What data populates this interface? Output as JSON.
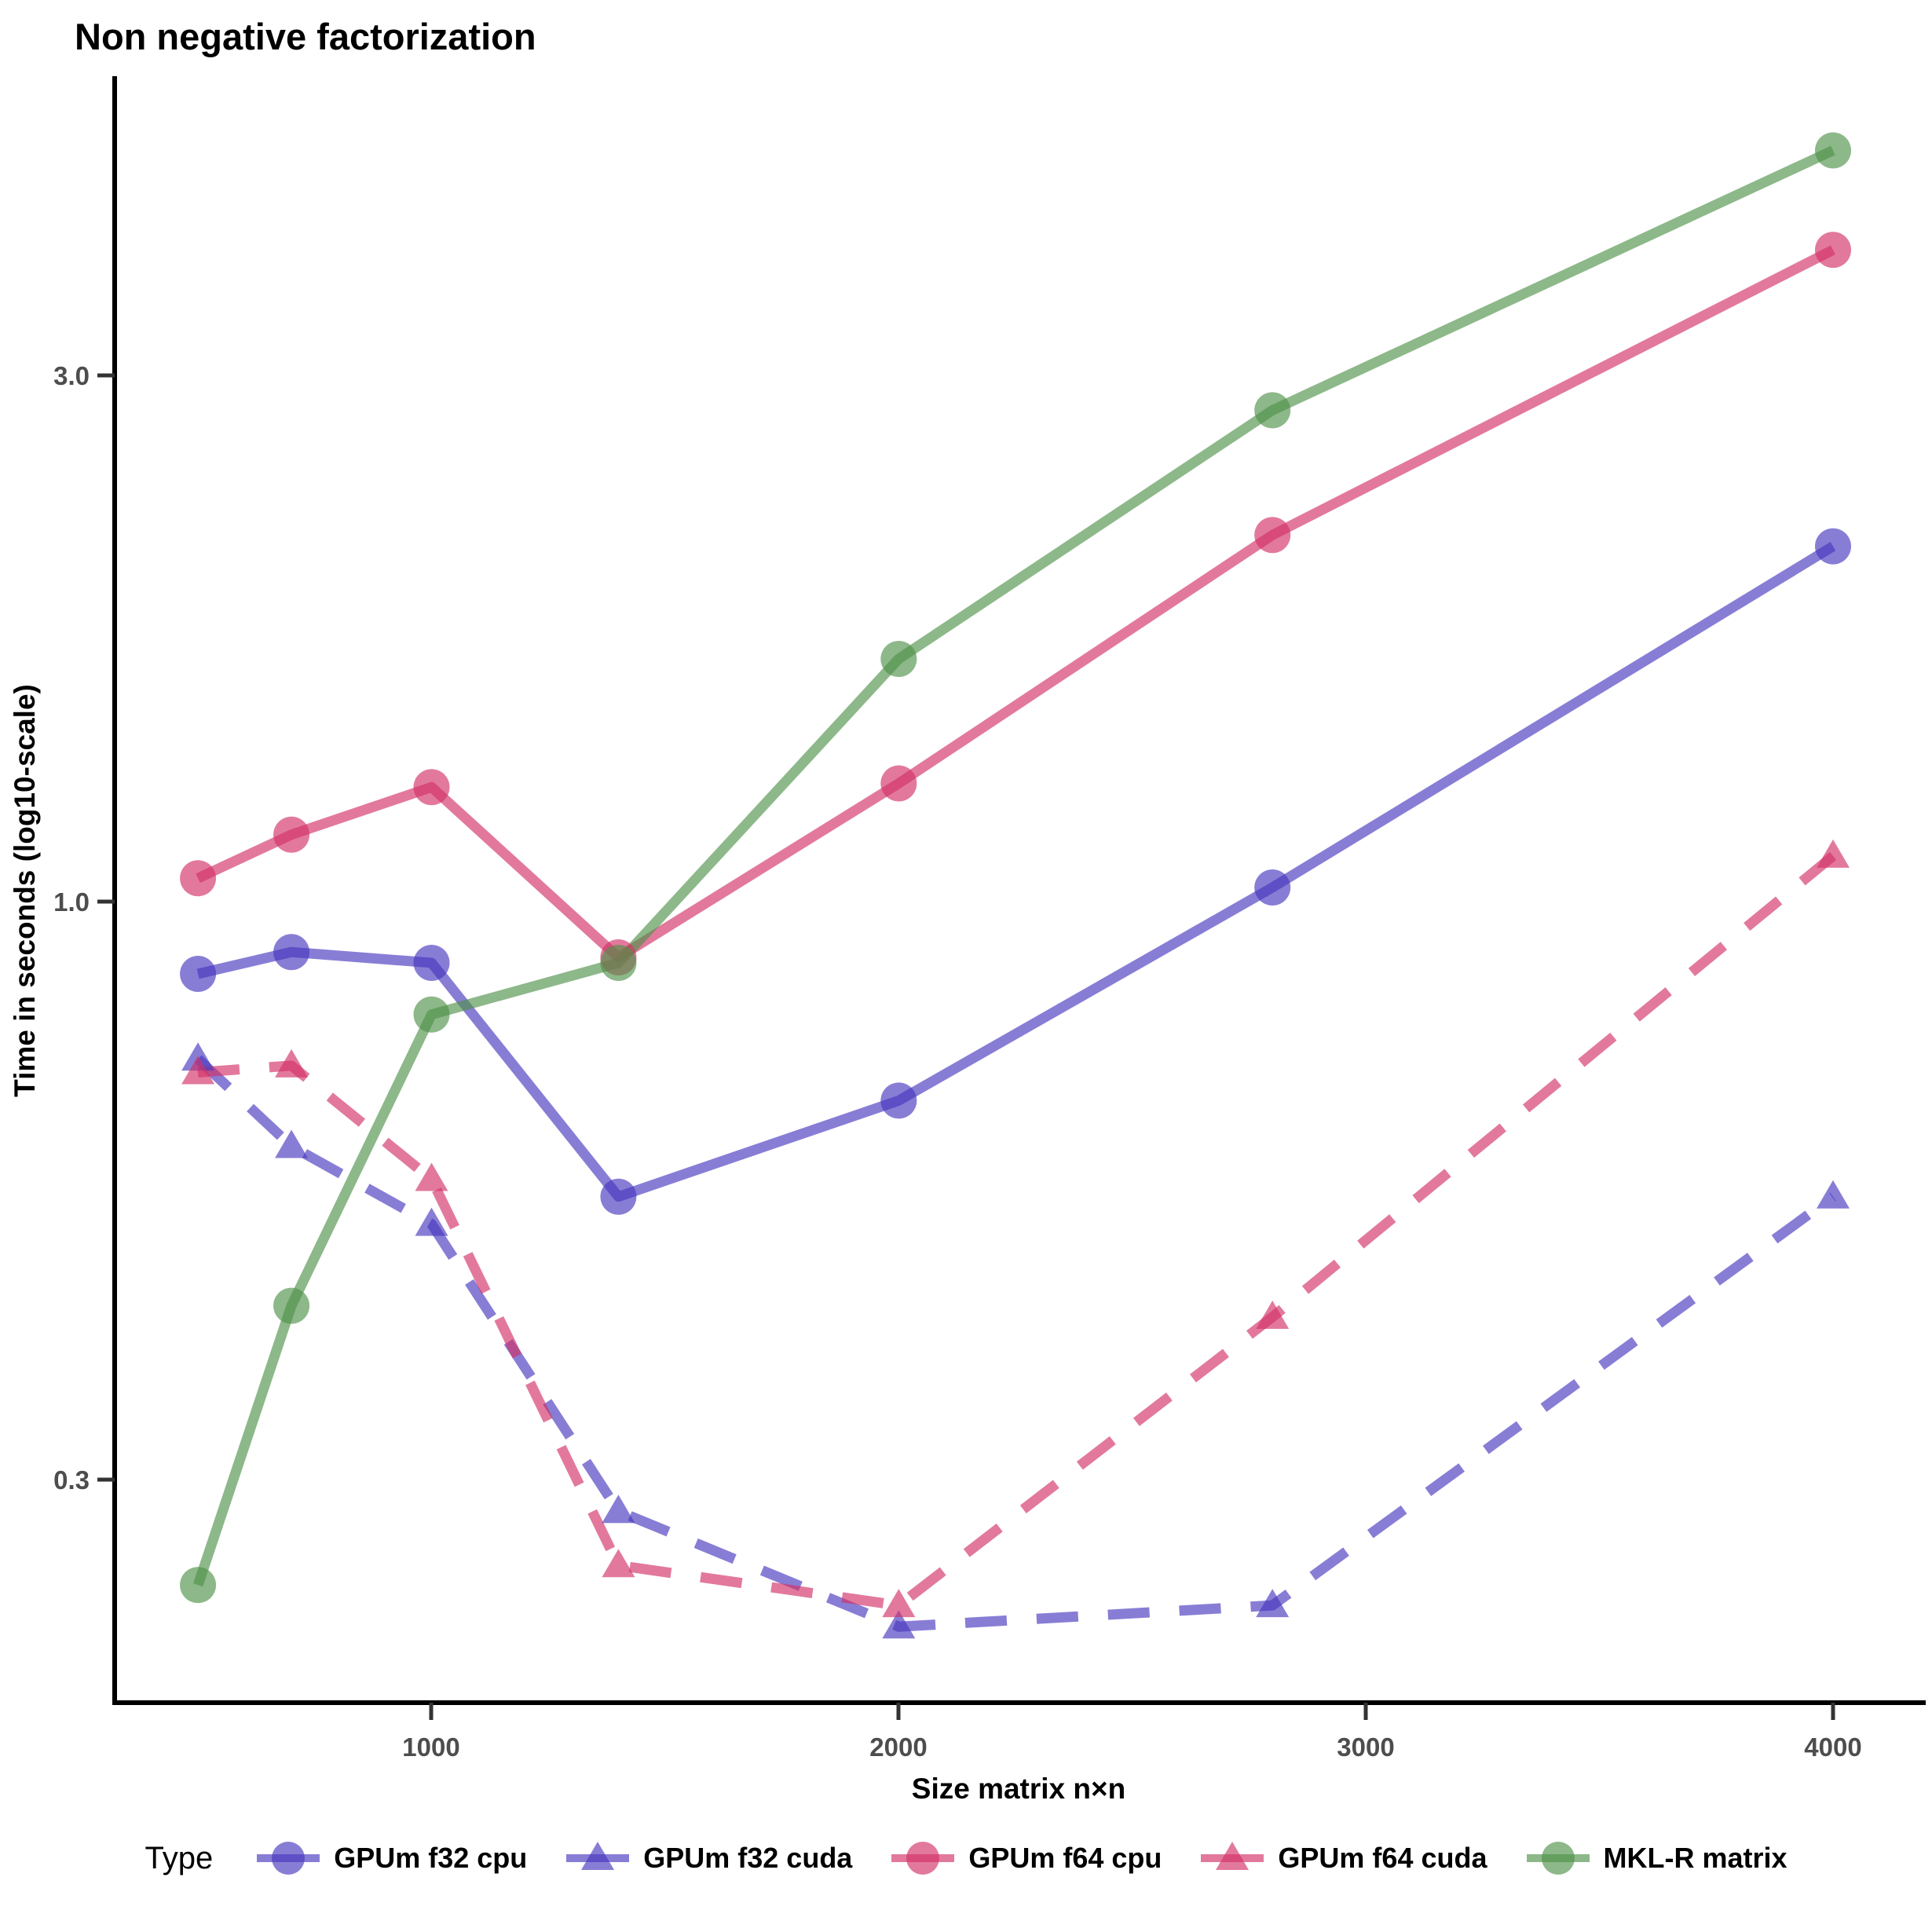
{
  "title": "Non negative factorization",
  "axes": {
    "x": {
      "label": "Size matrix n×n",
      "ticks": [
        "1000",
        "2000",
        "3000",
        "4000"
      ]
    },
    "y": {
      "label": "Time in seconds (log10-scale)",
      "ticks": [
        "3.0",
        "1.0",
        "0.3"
      ]
    }
  },
  "legend": {
    "title": "Type"
  },
  "colors": {
    "purple": "#4838BE",
    "pink": "#D23167",
    "green": "#509249",
    "axis": "#000000",
    "tick_text": "#4d4d4d"
  },
  "chart_data": {
    "type": "line",
    "title": "Non negative factorization",
    "xlabel": "Size matrix n×n",
    "ylabel": "Time in seconds (log10-scale)",
    "yscale": "log10",
    "grid": false,
    "legend_position": "bottom",
    "xlim": [
      320,
      4130
    ],
    "ylim": [
      0.19,
      5.5
    ],
    "x": [
      500,
      700,
      1000,
      1400,
      2000,
      2800,
      4000
    ],
    "series": [
      {
        "name": "GPUm f32 cpu",
        "marker": "circle",
        "line": "solid",
        "color": "#4838BE",
        "values": [
          0.86,
          0.9,
          0.88,
          0.54,
          0.66,
          1.03,
          2.1
        ]
      },
      {
        "name": "GPUm f32 cuda",
        "marker": "triangle",
        "line": "dashed",
        "color": "#4838BE",
        "values": [
          0.72,
          0.6,
          0.51,
          0.28,
          0.22,
          0.23,
          0.54
        ]
      },
      {
        "name": "GPUm f64 cpu",
        "marker": "circle",
        "line": "solid",
        "color": "#D23167",
        "values": [
          1.05,
          1.15,
          1.27,
          0.89,
          1.28,
          2.15,
          3.9
        ]
      },
      {
        "name": "GPUm f64 cuda",
        "marker": "triangle",
        "line": "dashed",
        "color": "#D23167",
        "values": [
          0.7,
          0.71,
          0.56,
          0.25,
          0.23,
          0.42,
          1.1
        ]
      },
      {
        "name": "MKL-R matrix",
        "marker": "circle",
        "line": "solid",
        "color": "#509249",
        "values": [
          0.24,
          0.43,
          0.79,
          0.88,
          1.66,
          2.79,
          4.8
        ]
      }
    ]
  }
}
